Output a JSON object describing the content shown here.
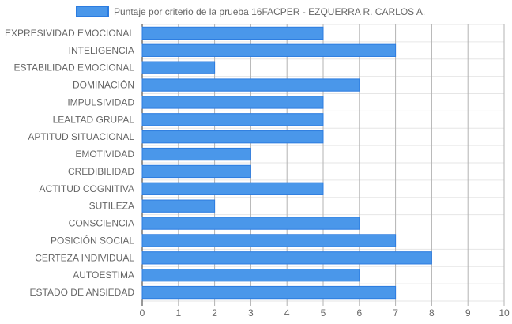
{
  "colors": {
    "bar_fill": "#4a97ea",
    "bar_stroke": "#2c7ce0",
    "grid": "#e6e6e6",
    "grid_dark": "#b3b3b3",
    "text": "#666666"
  },
  "chart_data": {
    "type": "bar",
    "orientation": "horizontal",
    "legend_position": "top",
    "grid": true,
    "xlim": [
      0,
      10
    ],
    "x_ticks": [
      "0",
      "1",
      "2",
      "3",
      "4",
      "5",
      "6",
      "7",
      "8",
      "9",
      "10"
    ],
    "series": [
      {
        "name": "Puntaje por criterio de la prueba 16FACPER - EZQUERRA R. CARLOS A."
      }
    ],
    "categories": [
      "EXPRESIVIDAD EMOCIONAL",
      "INTELIGENCIA",
      "ESTABILIDAD EMOCIONAL",
      "DOMINACIÓN",
      "IMPULSIVIDAD",
      "LEALTAD GRUPAL",
      "APTITUD SITUACIONAL",
      "EMOTIVIDAD",
      "CREDIBILIDAD",
      "ACTITUD COGNITIVA",
      "SUTILEZA",
      "CONSCIENCIA",
      "POSICIÓN SOCIAL",
      "CERTEZA INDIVIDUAL",
      "AUTOESTIMA",
      "ESTADO DE ANSIEDAD"
    ],
    "values": [
      5,
      7,
      2,
      6,
      5,
      5,
      5,
      3,
      3,
      5,
      2,
      6,
      7,
      8,
      6,
      7
    ]
  }
}
